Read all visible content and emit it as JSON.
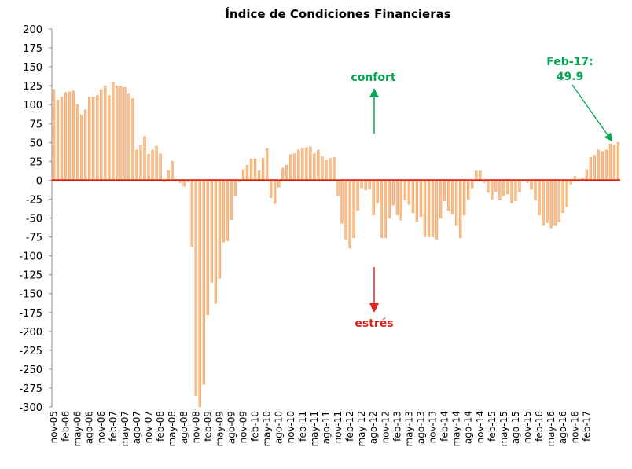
{
  "chart_data": {
    "type": "bar",
    "title": "Índice de Condiciones Financieras",
    "xlabel": "",
    "ylabel": "",
    "ylim": [
      -300,
      200
    ],
    "yticks": [
      200,
      175,
      150,
      125,
      100,
      75,
      50,
      25,
      0,
      -25,
      -50,
      -75,
      -100,
      -125,
      -150,
      -175,
      -200,
      -225,
      -250,
      -275,
      -300
    ],
    "grid": false,
    "x_tick_labels": [
      "nov-05",
      "feb-06",
      "may-06",
      "ago-06",
      "nov-06",
      "feb-07",
      "may-07",
      "ago-07",
      "nov-07",
      "feb-08",
      "may-08",
      "ago-08",
      "nov-08",
      "feb-09",
      "may-09",
      "ago-09",
      "nov-09",
      "feb-10",
      "may-10",
      "ago-10",
      "nov-10",
      "feb-11",
      "may-11",
      "ago-11",
      "nov-11",
      "feb-12",
      "may-12",
      "ago-12",
      "nov-12",
      "feb-13",
      "may-13",
      "ago-13",
      "nov-13",
      "feb-14",
      "may-14",
      "ago-14",
      "nov-14",
      "feb-15",
      "may-15",
      "ago-15",
      "nov-15",
      "feb-16",
      "may-16",
      "ago-16",
      "nov-16",
      "feb-17"
    ],
    "series": [
      {
        "values": [
          120,
          106,
          110,
          116,
          117,
          118,
          100,
          86,
          93,
          110,
          110,
          112,
          120,
          125,
          112,
          130,
          125,
          124,
          123,
          114,
          108,
          40,
          46,
          58,
          34,
          40,
          45,
          35,
          -2,
          13,
          25,
          0,
          -3,
          -8,
          -2,
          -88,
          -285,
          -300,
          -270,
          -178,
          -135,
          -163,
          -130,
          -82,
          -80,
          -52,
          -20,
          -2,
          14,
          20,
          28,
          28,
          12,
          29,
          42,
          -23,
          -31,
          -9,
          16,
          20,
          34,
          35,
          40,
          42,
          43,
          44,
          35,
          40,
          31,
          26,
          29,
          30,
          -20,
          -57,
          -78,
          -90,
          -76,
          -40,
          -10,
          -13,
          -12,
          -46,
          -30,
          -76,
          -76,
          -50,
          -33,
          -46,
          -53,
          -26,
          -32,
          -43,
          -55,
          -48,
          -75,
          -75,
          -75,
          -78,
          -50,
          -27,
          -40,
          -45,
          -60,
          -76,
          -46,
          -25,
          -10,
          12,
          12,
          -3,
          -16,
          -25,
          -15,
          -26,
          -20,
          -18,
          -30,
          -27,
          -15,
          -1,
          -3,
          -12,
          -26,
          -46,
          -60,
          -56,
          -63,
          -60,
          -55,
          -43,
          -35,
          -5,
          5,
          1,
          2,
          14,
          30,
          33,
          40,
          38,
          40,
          48,
          47,
          49.9
        ]
      }
    ],
    "reference_line": 0,
    "annotations": [
      {
        "text": "confort",
        "color": "#00a651"
      },
      {
        "text": "estrés",
        "color": "#e2231a"
      },
      {
        "text": "Feb-17:",
        "color": "#00a651"
      },
      {
        "text": "49.9",
        "color": "#00a651"
      }
    ],
    "colors": {
      "bar_fill": "#f9c08f",
      "bar_stroke": "#f4a460",
      "zero_line": "#e2231a",
      "axis": "#888888",
      "up_arrow": "#00a651",
      "down_arrow": "#e2231a"
    }
  }
}
